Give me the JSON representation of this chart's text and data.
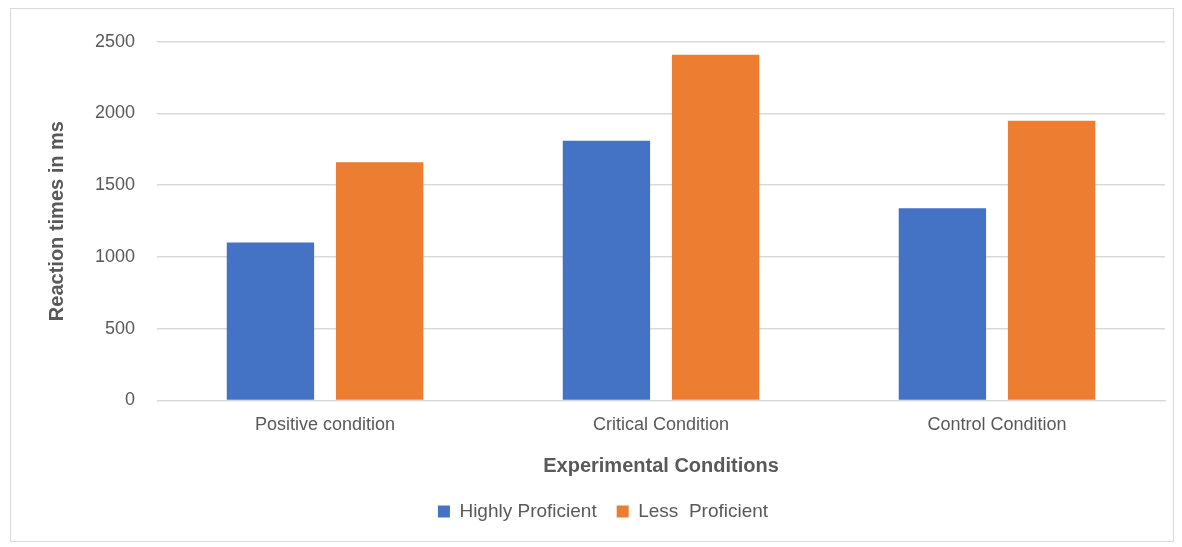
{
  "chart_data": {
    "type": "bar",
    "xlabel": "Experimental Conditions",
    "ylabel": "Reaction times in ms",
    "categories": [
      "Positive condition",
      "Critical Condition",
      "Control Condition"
    ],
    "series": [
      {
        "name": "Highly Proficient",
        "color": "#4472c4",
        "values": [
          1100,
          1810,
          1340
        ]
      },
      {
        "name": "Less  Proficient",
        "color": "#ed7d31",
        "values": [
          1660,
          2410,
          1950
        ]
      }
    ],
    "ylim": [
      0,
      2500
    ],
    "yticks": [
      0,
      500,
      1000,
      1500,
      2000,
      2500
    ],
    "grid": "y",
    "legend": "bottom"
  }
}
